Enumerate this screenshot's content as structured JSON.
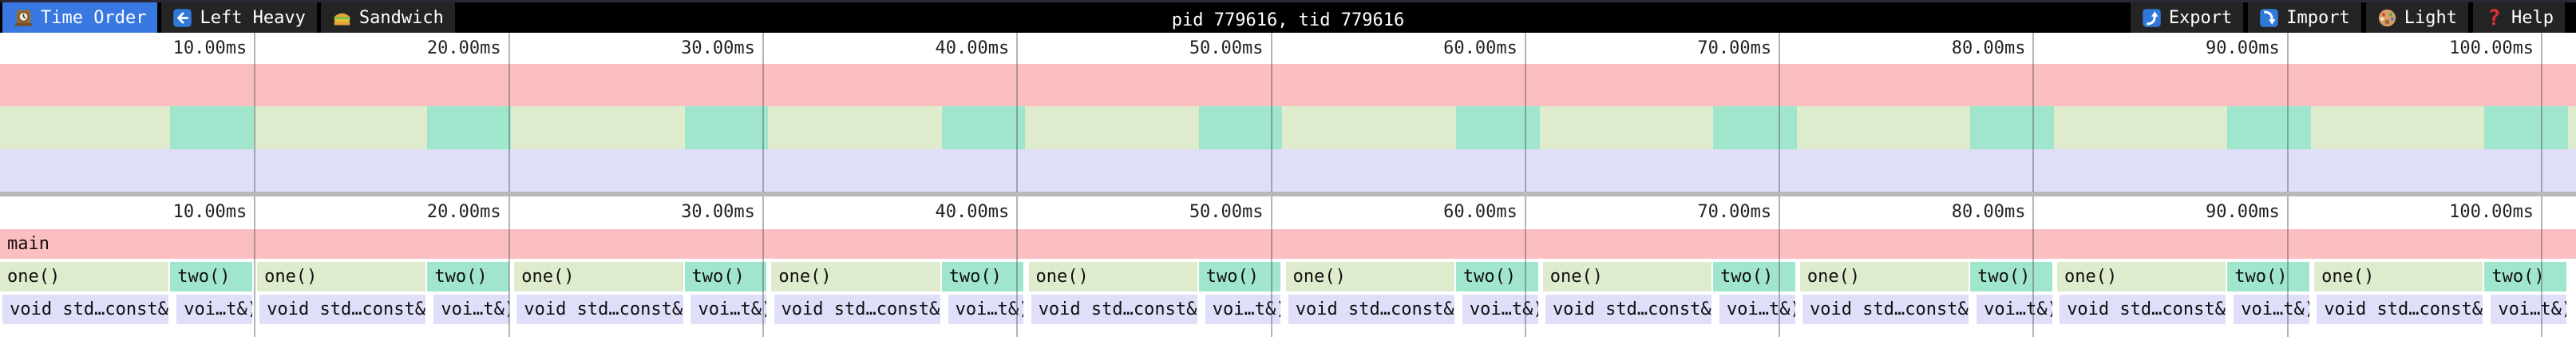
{
  "toolbar": {
    "title": "pid 779616, tid 779616",
    "tabs": [
      {
        "id": "time-order",
        "label": "Time Order",
        "icon": "clock-icon",
        "active": true
      },
      {
        "id": "left-heavy",
        "label": "Left Heavy",
        "icon": "left-arrow-icon",
        "active": false
      },
      {
        "id": "sandwich",
        "label": "Sandwich",
        "icon": "sandwich-icon",
        "active": false
      }
    ],
    "actions": [
      {
        "id": "export",
        "label": "Export",
        "icon": "export-icon"
      },
      {
        "id": "import",
        "label": "Import",
        "icon": "import-icon"
      },
      {
        "id": "light",
        "label": "Light",
        "icon": "palette-icon"
      },
      {
        "id": "help",
        "label": "Help",
        "icon": "help-icon"
      }
    ],
    "active_tab_color": "#3878e0"
  },
  "colors": {
    "main": "#fcbfc1",
    "one": "#deeccd",
    "two": "#a0e6cd",
    "void": "#dfdffa",
    "divider": "#b9b9b9"
  },
  "timeline": {
    "unit": "ms",
    "total_ms": 101.38,
    "ticks": [
      {
        "label": "10.00ms",
        "ms": 10
      },
      {
        "label": "20.00ms",
        "ms": 20
      },
      {
        "label": "30.00ms",
        "ms": 30
      },
      {
        "label": "40.00ms",
        "ms": 40
      },
      {
        "label": "50.00ms",
        "ms": 50
      },
      {
        "label": "60.00ms",
        "ms": 60
      },
      {
        "label": "70.00ms",
        "ms": 70
      },
      {
        "label": "80.00ms",
        "ms": 80
      },
      {
        "label": "90.00ms",
        "ms": 90
      },
      {
        "label": "100.00ms",
        "ms": 100
      }
    ]
  },
  "minimap": {
    "bands": [
      {
        "name": "minimap-band-main",
        "color": "main",
        "cells": []
      },
      {
        "name": "minimap-band-depth1",
        "color": "one",
        "cells": [
          {
            "start": 6.7,
            "end": 9.99,
            "color": "two"
          },
          {
            "start": 16.82,
            "end": 20.11,
            "color": "two"
          },
          {
            "start": 26.94,
            "end": 30.23,
            "color": "two"
          },
          {
            "start": 37.06,
            "end": 40.35,
            "color": "two"
          },
          {
            "start": 47.18,
            "end": 50.47,
            "color": "two"
          },
          {
            "start": 57.3,
            "end": 60.59,
            "color": "two"
          },
          {
            "start": 67.42,
            "end": 70.71,
            "color": "two"
          },
          {
            "start": 77.54,
            "end": 80.83,
            "color": "two"
          },
          {
            "start": 87.66,
            "end": 90.95,
            "color": "two"
          },
          {
            "start": 97.78,
            "end": 101.07,
            "color": "two"
          }
        ]
      },
      {
        "name": "minimap-band-depth2",
        "color": "void",
        "cells": []
      }
    ]
  },
  "flamegraph": {
    "rows": [
      {
        "name": "row-main",
        "frames": [
          {
            "label": "main",
            "start": 0,
            "end": 101.38,
            "color": "main"
          }
        ]
      },
      {
        "name": "row-depth1",
        "frames": [
          {
            "label": "one()",
            "start": 0,
            "end": 6.7,
            "color": "one"
          },
          {
            "label": "two()",
            "start": 6.7,
            "end": 9.99,
            "color": "two"
          },
          {
            "label": "one()",
            "start": 10.12,
            "end": 16.82,
            "color": "one"
          },
          {
            "label": "two()",
            "start": 16.82,
            "end": 20.11,
            "color": "two"
          },
          {
            "label": "one()",
            "start": 20.24,
            "end": 26.94,
            "color": "one"
          },
          {
            "label": "two()",
            "start": 26.94,
            "end": 30.23,
            "color": "two"
          },
          {
            "label": "one()",
            "start": 30.36,
            "end": 37.06,
            "color": "one"
          },
          {
            "label": "two()",
            "start": 37.06,
            "end": 40.35,
            "color": "two"
          },
          {
            "label": "one()",
            "start": 40.48,
            "end": 47.18,
            "color": "one"
          },
          {
            "label": "two()",
            "start": 47.18,
            "end": 50.47,
            "color": "two"
          },
          {
            "label": "one()",
            "start": 50.6,
            "end": 57.3,
            "color": "one"
          },
          {
            "label": "two()",
            "start": 57.3,
            "end": 60.59,
            "color": "two"
          },
          {
            "label": "one()",
            "start": 60.72,
            "end": 67.42,
            "color": "one"
          },
          {
            "label": "two()",
            "start": 67.42,
            "end": 70.71,
            "color": "two"
          },
          {
            "label": "one()",
            "start": 70.84,
            "end": 77.54,
            "color": "one"
          },
          {
            "label": "two()",
            "start": 77.54,
            "end": 80.83,
            "color": "two"
          },
          {
            "label": "one()",
            "start": 80.96,
            "end": 87.66,
            "color": "one"
          },
          {
            "label": "two()",
            "start": 87.66,
            "end": 90.95,
            "color": "two"
          },
          {
            "label": "one()",
            "start": 91.08,
            "end": 97.78,
            "color": "one"
          },
          {
            "label": "two()",
            "start": 97.78,
            "end": 101.07,
            "color": "two"
          }
        ]
      },
      {
        "name": "row-depth2",
        "frames": [
          {
            "label": "void std…const&)",
            "start": 0.1,
            "end": 6.7,
            "color": "void"
          },
          {
            "label": "voi…t&)",
            "start": 6.95,
            "end": 9.99,
            "color": "void"
          },
          {
            "label": "void std…const&)",
            "start": 10.22,
            "end": 16.82,
            "color": "void"
          },
          {
            "label": "voi…t&)",
            "start": 17.07,
            "end": 20.11,
            "color": "void"
          },
          {
            "label": "void std…const&)",
            "start": 20.34,
            "end": 26.94,
            "color": "void"
          },
          {
            "label": "voi…t&)",
            "start": 27.19,
            "end": 30.23,
            "color": "void"
          },
          {
            "label": "void std…const&)",
            "start": 30.46,
            "end": 37.06,
            "color": "void"
          },
          {
            "label": "voi…t&)",
            "start": 37.31,
            "end": 40.35,
            "color": "void"
          },
          {
            "label": "void std…const&)",
            "start": 40.58,
            "end": 47.18,
            "color": "void"
          },
          {
            "label": "voi…t&)",
            "start": 47.43,
            "end": 50.47,
            "color": "void"
          },
          {
            "label": "void std…const&)",
            "start": 50.7,
            "end": 57.3,
            "color": "void"
          },
          {
            "label": "voi…t&)",
            "start": 57.55,
            "end": 60.59,
            "color": "void"
          },
          {
            "label": "void std…const&)",
            "start": 60.82,
            "end": 67.42,
            "color": "void"
          },
          {
            "label": "voi…t&)",
            "start": 67.67,
            "end": 70.71,
            "color": "void"
          },
          {
            "label": "void std…const&)",
            "start": 70.94,
            "end": 77.54,
            "color": "void"
          },
          {
            "label": "voi…t&)",
            "start": 77.79,
            "end": 80.83,
            "color": "void"
          },
          {
            "label": "void std…const&)",
            "start": 81.06,
            "end": 87.66,
            "color": "void"
          },
          {
            "label": "voi…t&)",
            "start": 87.91,
            "end": 90.95,
            "color": "void"
          },
          {
            "label": "void std…const&)",
            "start": 91.18,
            "end": 97.78,
            "color": "void"
          },
          {
            "label": "voi…t&)",
            "start": 98.03,
            "end": 101.07,
            "color": "void"
          }
        ]
      }
    ]
  }
}
